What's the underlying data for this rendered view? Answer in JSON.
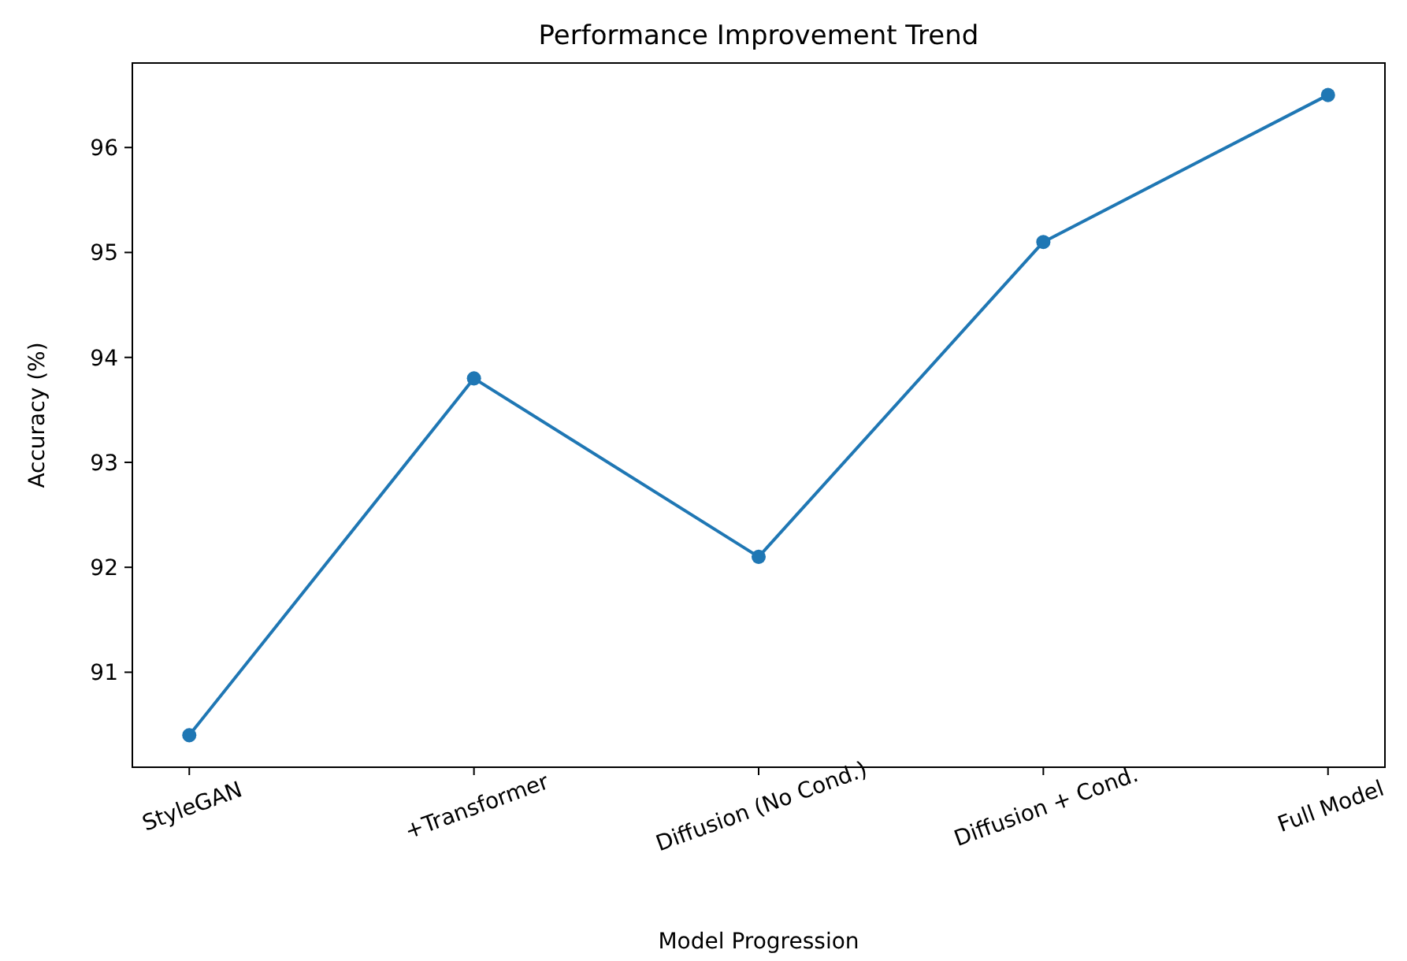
{
  "chart_data": {
    "type": "line",
    "title": "Performance Improvement Trend",
    "xlabel": "Model Progression",
    "ylabel": "Accuracy (%)",
    "categories": [
      "StyleGAN",
      "+Transformer",
      "Diffusion (No Cond.)",
      "Diffusion + Cond.",
      "Full Model"
    ],
    "series": [
      {
        "color": "#1f77b4",
        "values": [
          90.4,
          93.8,
          92.1,
          95.1,
          96.5
        ]
      }
    ],
    "ylim": [
      90.095,
      96.805
    ],
    "yticks": [
      91,
      92,
      93,
      94,
      95,
      96
    ],
    "marker": "circle"
  }
}
